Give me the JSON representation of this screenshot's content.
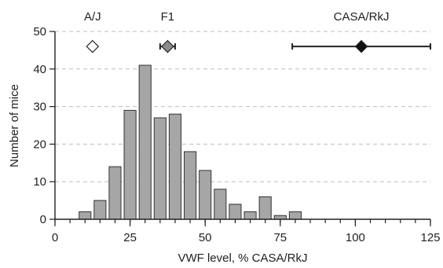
{
  "chart_data": {
    "type": "bar",
    "xlabel": "VWF level, % CASA/RkJ",
    "ylabel": "Number of mice",
    "xlim": [
      0,
      125
    ],
    "ylim": [
      0,
      50
    ],
    "x_major_ticks": [
      0,
      25,
      50,
      75,
      100,
      125
    ],
    "x_minor_step": 5,
    "y_ticks": [
      0,
      10,
      20,
      30,
      40,
      50
    ],
    "grid": "horizontal dashed",
    "bin_width": 5,
    "bins": [
      {
        "x": 10,
        "count": 2
      },
      {
        "x": 15,
        "count": 5
      },
      {
        "x": 20,
        "count": 14
      },
      {
        "x": 25,
        "count": 29
      },
      {
        "x": 30,
        "count": 41
      },
      {
        "x": 35,
        "count": 27
      },
      {
        "x": 40,
        "count": 28
      },
      {
        "x": 45,
        "count": 18
      },
      {
        "x": 50,
        "count": 13
      },
      {
        "x": 55,
        "count": 8
      },
      {
        "x": 60,
        "count": 4
      },
      {
        "x": 65,
        "count": 2
      },
      {
        "x": 70,
        "count": 6
      },
      {
        "x": 75,
        "count": 1
      },
      {
        "x": 80,
        "count": 2
      }
    ],
    "strains": [
      {
        "label": "A/J",
        "mean": 12.5,
        "low": 12.5,
        "high": 12.5,
        "y": 46,
        "fill": "#ffffff"
      },
      {
        "label": "F1",
        "mean": 37.5,
        "low": 35,
        "high": 40,
        "y": 46,
        "fill": "#8c8c8c"
      },
      {
        "label": "CASA/RkJ",
        "mean": 102,
        "low": 79,
        "high": 125,
        "y": 46,
        "fill": "#111111"
      }
    ]
  }
}
